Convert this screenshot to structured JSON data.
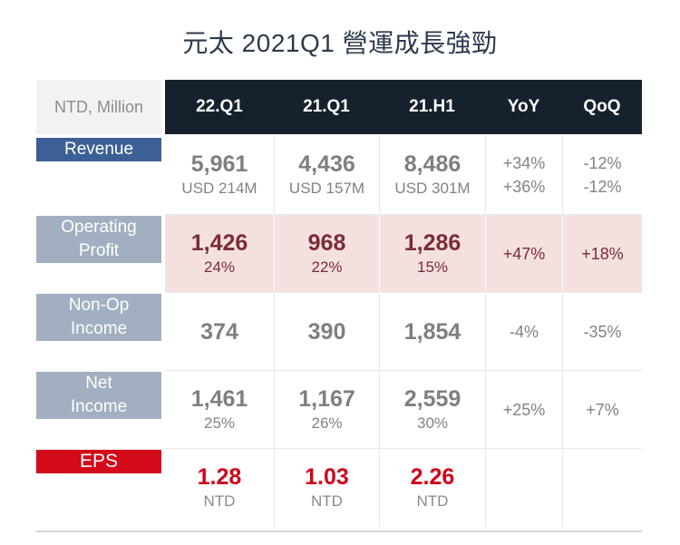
{
  "title": "元太 2021Q1 營運成長強勁",
  "colors": {
    "header_bg": "#16212e",
    "corner_bg": "#f2f2f2",
    "revenue_label_blue": "#3c6095",
    "metric_label_gray": "#a1afc0",
    "eps_label_red": "#d20a1a",
    "operating_row_pink_bg": "#f5e0e0",
    "operating_value_dark_red": "#7b2c34",
    "eps_value_red": "#d0021b",
    "value_gray": "#7f7f7f",
    "title_navy": "#2b3a4c"
  },
  "chart_data": {
    "type": "table",
    "title": "元太 2021Q1 營運成長強勁",
    "corner_label": "NTD, Million",
    "columns": [
      "22.Q1",
      "21.Q1",
      "21.H1",
      "YoY",
      "QoQ"
    ],
    "rows": [
      {
        "label": "Revenue",
        "c1_main": "5,961",
        "c1_sub": "USD 214M",
        "c2_main": "4,436",
        "c2_sub": "USD 157M",
        "c3_main": "8,486",
        "c3_sub": "USD 301M",
        "yoy_1": "+34%",
        "yoy_2": "+36%",
        "qoq_1": "-12%",
        "qoq_2": "-12%"
      },
      {
        "label": "Operating",
        "label2": "Profit",
        "c1_main": "1,426",
        "c1_sub": "24%",
        "c2_main": "968",
        "c2_sub": "22%",
        "c3_main": "1,286",
        "c3_sub": "15%",
        "yoy_1": "+47%",
        "qoq_1": "+18%"
      },
      {
        "label": "Non-Op",
        "label2": "Income",
        "c1_main": "374",
        "c2_main": "390",
        "c3_main": "1,854",
        "yoy_1": "-4%",
        "qoq_1": "-35%"
      },
      {
        "label": "Net",
        "label2": "Income",
        "c1_main": "1,461",
        "c1_sub": "25%",
        "c2_main": "1,167",
        "c2_sub": "26%",
        "c3_main": "2,559",
        "c3_sub": "30%",
        "yoy_1": "+25%",
        "qoq_1": "+7%"
      },
      {
        "label": "EPS",
        "c1_main": "1.28",
        "c1_sub": "NTD",
        "c2_main": "1.03",
        "c2_sub": "NTD",
        "c3_main": "2.26",
        "c3_sub": "NTD"
      }
    ]
  }
}
